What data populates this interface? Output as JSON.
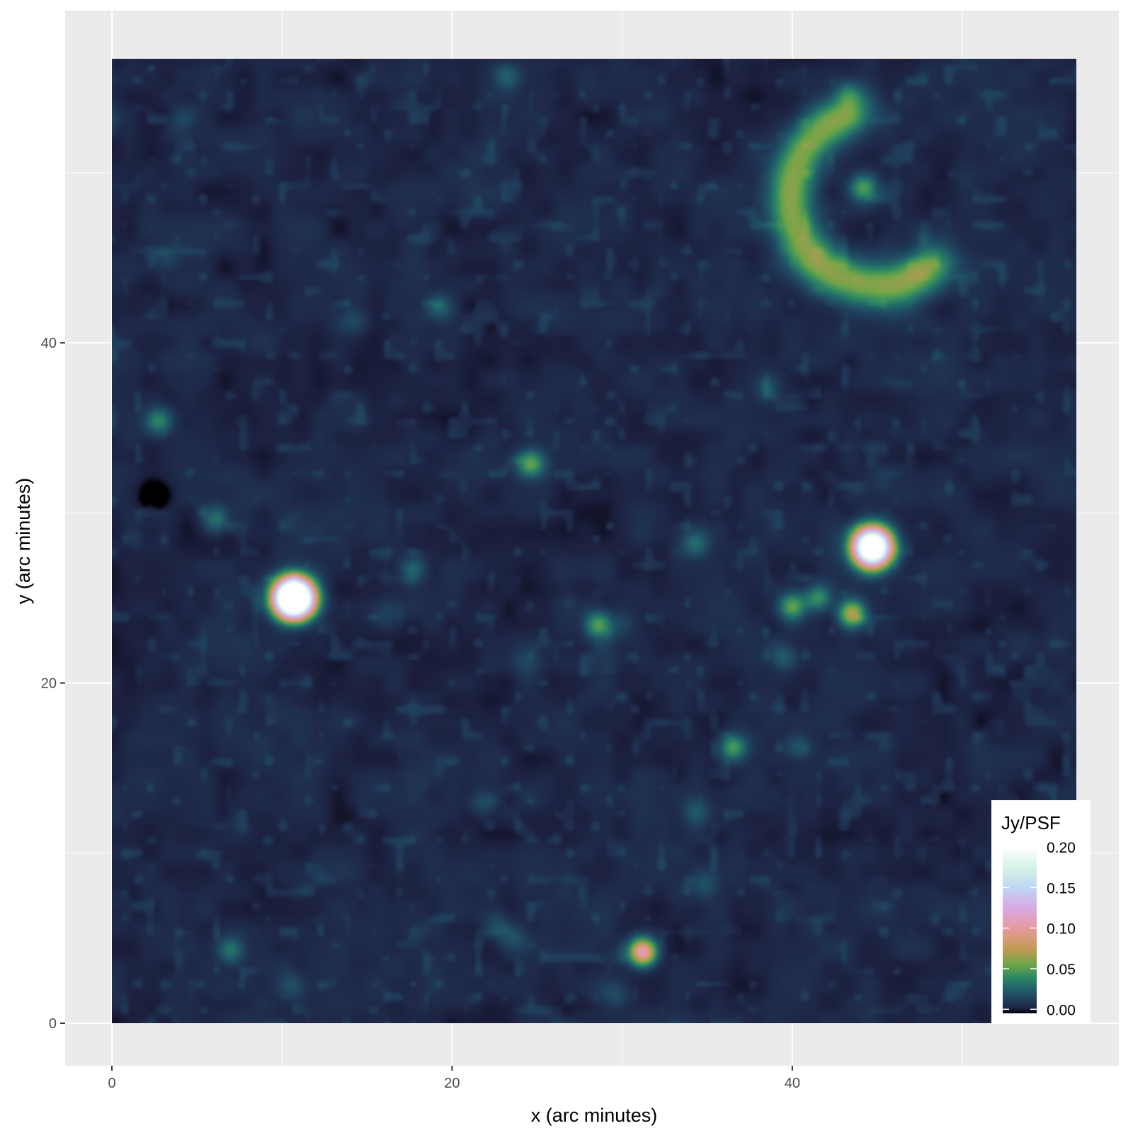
{
  "chart_data": {
    "type": "heatmap",
    "title": "",
    "xlabel": "x (arc minutes)",
    "ylabel": "y (arc minutes)",
    "xlim": [
      0,
      56.7
    ],
    "ylim": [
      0,
      56.7
    ],
    "x_ticks": [
      0,
      20,
      40
    ],
    "y_ticks": [
      0,
      20,
      40
    ],
    "grid": true,
    "colorbar": {
      "title": "Jy/PSF",
      "range": [
        -0.005,
        0.2
      ],
      "ticks": [
        "0.00",
        "0.05",
        "0.10",
        "0.15",
        "0.20"
      ],
      "tick_values": [
        0.0,
        0.05,
        0.1,
        0.15,
        0.2
      ],
      "colormap": [
        {
          "value": -0.005,
          "color": "#000000"
        },
        {
          "value": 0.0,
          "color": "#1a1d3a"
        },
        {
          "value": 0.004,
          "color": "#1f2a4a"
        },
        {
          "value": 0.012,
          "color": "#1f3f5c"
        },
        {
          "value": 0.025,
          "color": "#21606a"
        },
        {
          "value": 0.04,
          "color": "#2f8a63"
        },
        {
          "value": 0.055,
          "color": "#6fa548"
        },
        {
          "value": 0.075,
          "color": "#c49a55"
        },
        {
          "value": 0.1,
          "color": "#e79a9f"
        },
        {
          "value": 0.125,
          "color": "#d7a9e6"
        },
        {
          "value": 0.15,
          "color": "#bfd7f3"
        },
        {
          "value": 0.175,
          "color": "#d5f3e6"
        },
        {
          "value": 0.2,
          "color": "#ffffff"
        }
      ],
      "position": "bottom-right"
    },
    "background_level": 0.003,
    "sources": [
      {
        "x": 10.7,
        "y": 25.0,
        "peak": 0.4
      },
      {
        "x": 44.7,
        "y": 28.0,
        "peak": 0.3
      },
      {
        "x": 31.2,
        "y": 4.2,
        "peak": 0.11
      },
      {
        "x": 2.5,
        "y": 31.0,
        "peak": -0.02
      },
      {
        "x": 24.6,
        "y": 32.9,
        "peak": 0.05
      },
      {
        "x": 28.6,
        "y": 23.4,
        "peak": 0.05
      },
      {
        "x": 36.5,
        "y": 16.2,
        "peak": 0.045
      },
      {
        "x": 2.7,
        "y": 35.4,
        "peak": 0.035
      },
      {
        "x": 6.1,
        "y": 29.6,
        "peak": 0.03
      },
      {
        "x": 17.7,
        "y": 26.7,
        "peak": 0.028
      },
      {
        "x": 7.0,
        "y": 4.3,
        "peak": 0.028
      },
      {
        "x": 34.3,
        "y": 28.2,
        "peak": 0.026
      },
      {
        "x": 19.3,
        "y": 42.1,
        "peak": 0.022
      },
      {
        "x": 23.2,
        "y": 55.7,
        "peak": 0.02
      },
      {
        "x": 43.5,
        "y": 24.1,
        "peak": 0.07
      },
      {
        "x": 40.0,
        "y": 24.5,
        "peak": 0.05
      },
      {
        "x": 41.5,
        "y": 25.0,
        "peak": 0.04
      },
      {
        "x": 44.2,
        "y": 49.1,
        "peak": 0.045
      },
      {
        "x": 43.3,
        "y": 54.6,
        "peak": 0.025
      },
      {
        "x": 38.5,
        "y": 37.3,
        "peak": 0.014
      },
      {
        "x": 3.2,
        "y": 45.0,
        "peak": 0.012
      },
      {
        "x": 40.3,
        "y": 16.2,
        "peak": 0.018
      },
      {
        "x": 34.4,
        "y": 12.4,
        "peak": 0.018
      },
      {
        "x": 21.8,
        "y": 13.0,
        "peak": 0.016
      },
      {
        "x": 22.6,
        "y": 5.7,
        "peak": 0.016
      },
      {
        "x": 23.6,
        "y": 5.1,
        "peak": 0.015
      },
      {
        "x": 10.6,
        "y": 2.2,
        "peak": 0.015
      },
      {
        "x": 29.6,
        "y": 1.6,
        "peak": 0.013
      },
      {
        "x": 34.9,
        "y": 8.1,
        "peak": 0.015
      },
      {
        "x": 24.4,
        "y": 21.2,
        "peak": 0.012
      },
      {
        "x": 30.0,
        "y": 23.4,
        "peak": 0.012
      },
      {
        "x": 14.2,
        "y": 41.3,
        "peak": 0.012
      },
      {
        "x": 4.1,
        "y": 53.1,
        "peak": 0.012
      },
      {
        "x": 39.5,
        "y": 21.5,
        "peak": 0.02
      },
      {
        "x": 16.0,
        "y": 24.0,
        "peak": 0.01
      }
    ],
    "arc_structures": [
      {
        "x": 45.0,
        "y": 48.5,
        "radius": 5.2,
        "from_deg": 100,
        "to_deg": 320,
        "peak": 0.014
      }
    ],
    "negative_holes": [
      {
        "x": 45.5,
        "y": 47.1,
        "peak": -0.003
      },
      {
        "x": 43.7,
        "y": 23.0,
        "peak": -0.002
      },
      {
        "x": 10.7,
        "y": 23.1,
        "peak": -0.002
      }
    ]
  }
}
